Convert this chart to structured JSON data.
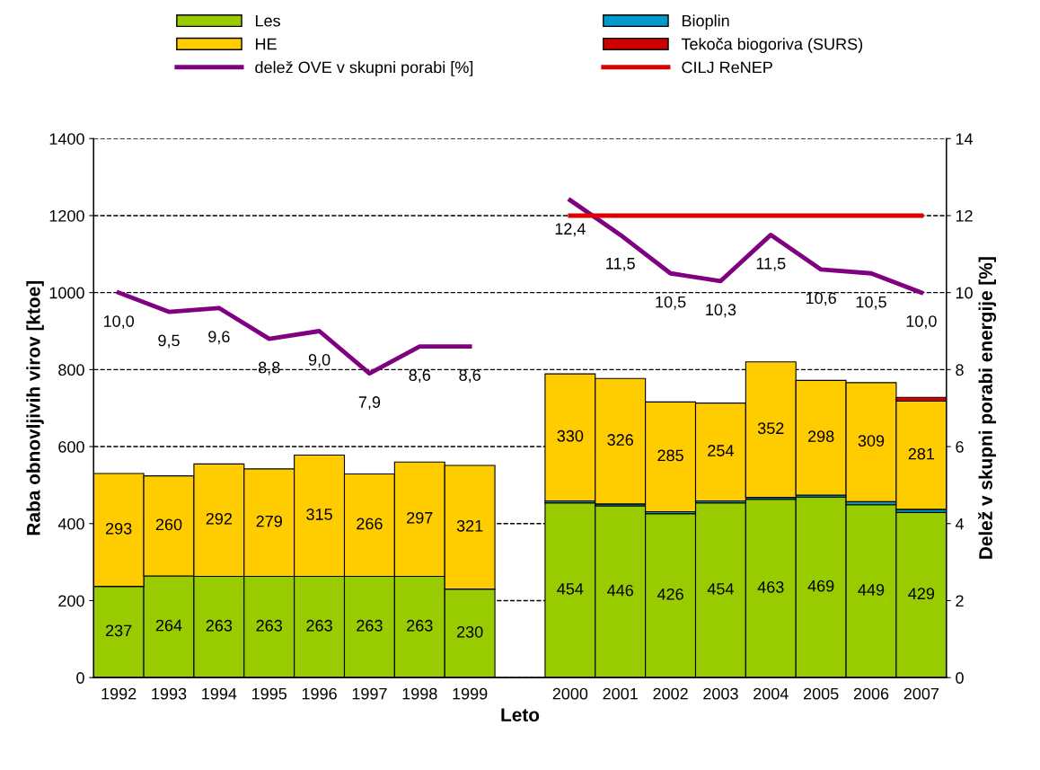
{
  "chart_data": {
    "type": "bar",
    "stacked": true,
    "xlabel": "Leto",
    "ylabel": "Raba obnovljivih virov [ktoe]",
    "y2label": "Delež v skupni porabi energije [%]",
    "categories": [
      "1992",
      "1993",
      "1994",
      "1995",
      "1996",
      "1997",
      "1998",
      "1999",
      null,
      "2000",
      "2001",
      "2002",
      "2003",
      "2004",
      "2005",
      "2006",
      "2007"
    ],
    "series": [
      {
        "name": "Les",
        "color": "#99cc00",
        "values": [
          237,
          264,
          263,
          263,
          263,
          263,
          263,
          230,
          null,
          454,
          446,
          426,
          454,
          463,
          469,
          449,
          429
        ],
        "value_labels": [
          "237",
          "264",
          "263",
          "263",
          "263",
          "263",
          "263",
          "230",
          null,
          "454",
          "446",
          "426",
          "454",
          "463",
          "469",
          "449",
          "429"
        ]
      },
      {
        "name": "Bioplin",
        "color": "#0099cc",
        "values": [
          null,
          null,
          null,
          null,
          null,
          null,
          null,
          null,
          null,
          5,
          5,
          5,
          5,
          5,
          5,
          8,
          8
        ]
      },
      {
        "name": "HE",
        "color": "#ffcc00",
        "values": [
          293,
          260,
          292,
          279,
          315,
          266,
          297,
          321,
          null,
          330,
          326,
          285,
          254,
          352,
          298,
          309,
          281
        ],
        "value_labels": [
          "293",
          "260",
          "292",
          "279",
          "315",
          "266",
          "297",
          "321",
          null,
          "330",
          "326",
          "285",
          "254",
          "352",
          "298",
          "309",
          "281"
        ]
      },
      {
        "name": "Tekoča biogoriva (SURS)",
        "color": "#cc0000",
        "values": [
          null,
          null,
          null,
          null,
          null,
          null,
          null,
          null,
          null,
          null,
          null,
          null,
          null,
          null,
          null,
          null,
          10
        ]
      },
      {
        "name": "delež OVE v skupni porabi [%]",
        "color": "#800080",
        "type": "line",
        "axis": "y2",
        "values": [
          10.0,
          9.5,
          9.6,
          8.8,
          9.0,
          7.9,
          8.6,
          8.6,
          null,
          12.4,
          11.5,
          10.5,
          10.3,
          11.5,
          10.6,
          10.5,
          10.0
        ],
        "value_labels": [
          "10,0",
          "9,5",
          "9,6",
          "8,8",
          "9,0",
          "7,9",
          "8,6",
          "8,6",
          null,
          "12,4",
          "11,5",
          "10,5",
          "10,3",
          "11,5",
          "10,6",
          "10,5",
          "10,0"
        ]
      },
      {
        "name": "CILJ ReNEP",
        "color": "#dd0000",
        "type": "line",
        "axis": "y2",
        "values": [
          null,
          null,
          null,
          null,
          null,
          null,
          null,
          null,
          null,
          12,
          12,
          12,
          12,
          12,
          12,
          12,
          12
        ]
      }
    ],
    "ylim": [
      0,
      1400
    ],
    "yticks": [
      0,
      200,
      400,
      600,
      800,
      1000,
      1200,
      1400
    ],
    "y2lim": [
      0,
      14
    ],
    "y2ticks": [
      0,
      2,
      4,
      6,
      8,
      10,
      12,
      14
    ],
    "grid": "y",
    "legend": "top"
  }
}
